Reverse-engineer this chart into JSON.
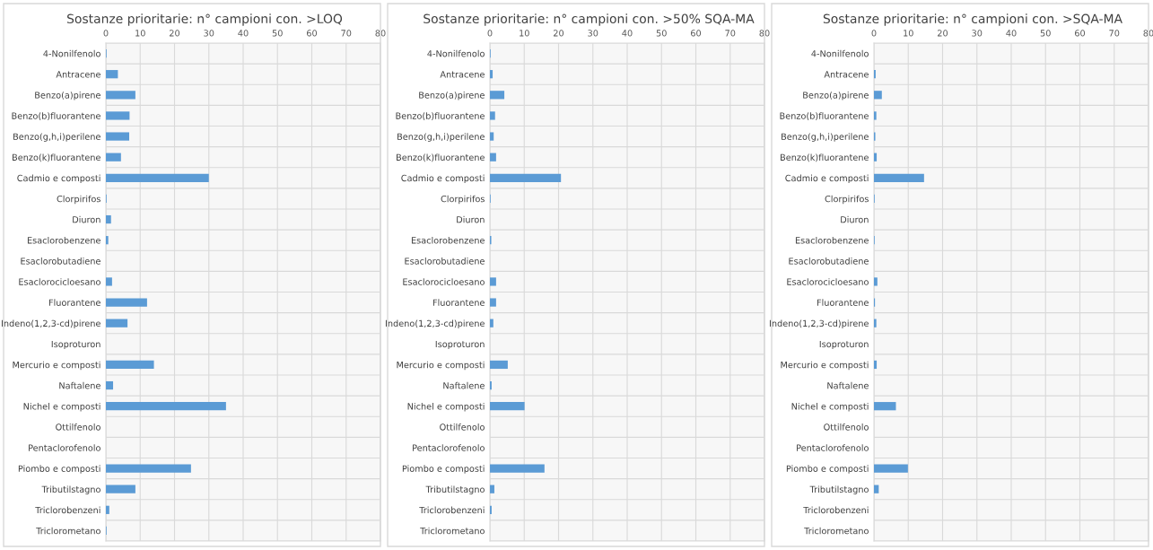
{
  "chart_data": [
    {
      "type": "bar",
      "orientation": "horizontal",
      "title": "Sostanze prioritarie: n° campioni con. >LOQ",
      "categories": [
        "4-Nonilfenolo",
        "Antracene",
        "Benzo(a)pirene",
        "Benzo(b)fluorantene",
        "Benzo(g,h,i)perilene",
        "Benzo(k)fluorantene",
        "Cadmio e composti",
        "Clorpirifos",
        "Diuron",
        "Esaclorobenzene",
        "Esaclorobutadiene",
        "Esaclorocicloesano",
        "Fluorantene",
        "Indeno(1,2,3-cd)pirene",
        "Isoproturon",
        "Mercurio e composti",
        "Naftalene",
        "Nichel e composti",
        "Ottilfenolo",
        "Pentaclorofenolo",
        "Piombo e composti",
        "Tributilstagno",
        "Triclorobenzeni",
        "Triclorometano"
      ],
      "values": [
        0.2,
        3.5,
        8.6,
        6.9,
        6.8,
        4.4,
        30,
        0.2,
        1.5,
        0.7,
        0,
        1.8,
        12,
        6.3,
        0,
        14,
        2.1,
        35,
        0,
        0,
        24.8,
        8.6,
        1,
        0.2
      ],
      "color": "#5b9bd5",
      "xlim": [
        0,
        80
      ],
      "xticks": [
        0,
        10,
        20,
        30,
        40,
        50,
        60,
        70,
        80
      ],
      "grid": true
    },
    {
      "type": "bar",
      "orientation": "horizontal",
      "title": "Sostanze prioritarie: n° campioni con. >50% SQA-MA",
      "categories": [
        "4-Nonilfenolo",
        "Antracene",
        "Benzo(a)pirene",
        "Benzo(b)fluorantene",
        "Benzo(g,h,i)perilene",
        "Benzo(k)fluorantene",
        "Cadmio e composti",
        "Clorpirifos",
        "Diuron",
        "Esaclorobenzene",
        "Esaclorobutadiene",
        "Esaclorocicloesano",
        "Fluorantene",
        "Indeno(1,2,3-cd)pirene",
        "Isoproturon",
        "Mercurio e composti",
        "Naftalene",
        "Nichel e composti",
        "Ottilfenolo",
        "Pentaclorofenolo",
        "Piombo e composti",
        "Tributilstagno",
        "Triclorobenzeni",
        "Triclorometano"
      ],
      "values": [
        0.2,
        0.8,
        4.2,
        1.5,
        1.1,
        1.8,
        20.7,
        0.2,
        0,
        0.4,
        0,
        1.8,
        1.8,
        1,
        0,
        5.2,
        0.5,
        10.1,
        0,
        0,
        15.9,
        1.3,
        0.5,
        0
      ],
      "color": "#5b9bd5",
      "xlim": [
        0,
        80
      ],
      "xticks": [
        0,
        10,
        20,
        30,
        40,
        50,
        60,
        70,
        80
      ],
      "grid": true
    },
    {
      "type": "bar",
      "orientation": "horizontal",
      "title": "Sostanze prioritarie: n° campioni con. >SQA-MA",
      "categories": [
        "4-Nonilfenolo",
        "Antracene",
        "Benzo(a)pirene",
        "Benzo(b)fluorantene",
        "Benzo(g,h,i)perilene",
        "Benzo(k)fluorantene",
        "Cadmio e composti",
        "Clorpirifos",
        "Diuron",
        "Esaclorobenzene",
        "Esaclorobutadiene",
        "Esaclorocicloesano",
        "Fluorantene",
        "Indeno(1,2,3-cd)pirene",
        "Isoproturon",
        "Mercurio e composti",
        "Naftalene",
        "Nichel e composti",
        "Ottilfenolo",
        "Pentaclorofenolo",
        "Piombo e composti",
        "Tributilstagno",
        "Triclorobenzeni",
        "Triclorometano"
      ],
      "values": [
        0,
        0.5,
        2.3,
        0.7,
        0.4,
        0.8,
        14.6,
        0.2,
        0,
        0.2,
        0,
        1,
        0.3,
        0.7,
        0,
        0.8,
        0,
        6.4,
        0,
        0,
        9.9,
        1.4,
        0,
        0
      ],
      "color": "#5b9bd5",
      "xlim": [
        0,
        80
      ],
      "xticks": [
        0,
        10,
        20,
        30,
        40,
        50,
        60,
        70,
        80
      ],
      "grid": true
    }
  ]
}
